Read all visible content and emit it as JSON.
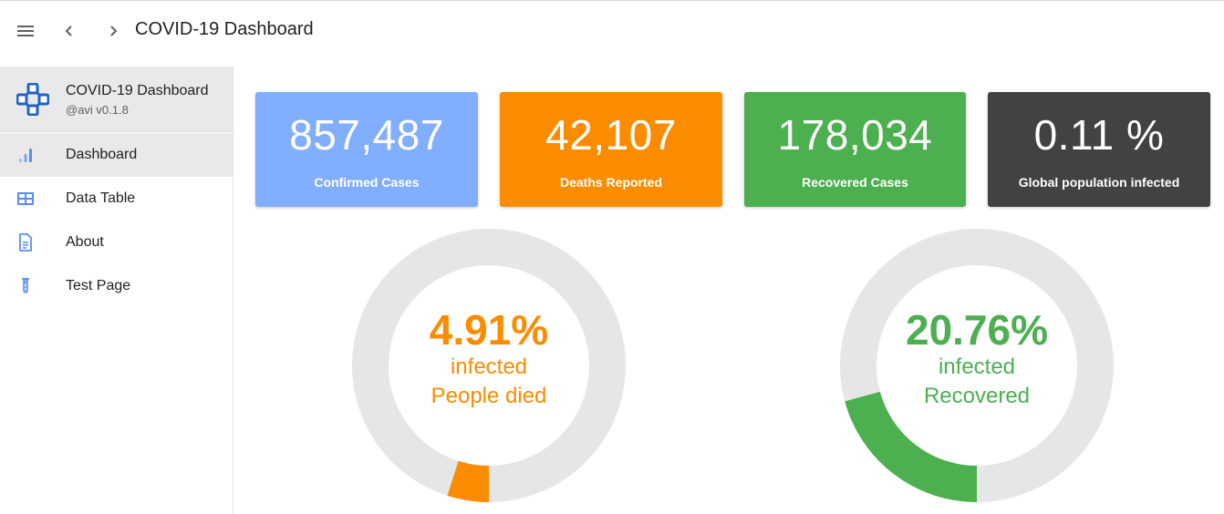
{
  "topbar": {
    "title": "COVID-19 Dashboard",
    "icons": [
      "menu-icon",
      "chevron-left-icon",
      "chevron-right-icon"
    ]
  },
  "sidebar": {
    "app_name": "COVID-19 Dashboard",
    "version": "@avi v0.1.8",
    "logo_icon": "network-icon",
    "items": [
      {
        "label": "Dashboard",
        "icon": "bar-chart-icon",
        "active": true
      },
      {
        "label": "Data Table",
        "icon": "table-icon",
        "active": false
      },
      {
        "label": "About",
        "icon": "document-icon",
        "active": false
      },
      {
        "label": "Test Page",
        "icon": "test-tube-icon",
        "active": false
      }
    ]
  },
  "cards": [
    {
      "value": "857,487",
      "label": "Confirmed Cases",
      "color": "#82aeff"
    },
    {
      "value": "42,107",
      "label": "Deaths Reported",
      "color": "#fb8c00"
    },
    {
      "value": "178,034",
      "label": "Recovered Cases",
      "color": "#4caf50"
    },
    {
      "value": "0.11 %",
      "label": "Global population infected",
      "color": "#424242"
    }
  ],
  "donuts": [
    {
      "percent_text": "4.91%",
      "line1": "infected",
      "line2": "People died",
      "fraction": 0.0491,
      "color": "#fb8c00",
      "track_color": "#e6e6e6"
    },
    {
      "percent_text": "20.76%",
      "line1": "infected",
      "line2": "Recovered",
      "fraction": 0.2076,
      "color": "#4caf50",
      "track_color": "#e6e6e6"
    }
  ],
  "accent_colors": {
    "icon_blue": "#5b8def",
    "logo_blue": "#1e63c8"
  }
}
